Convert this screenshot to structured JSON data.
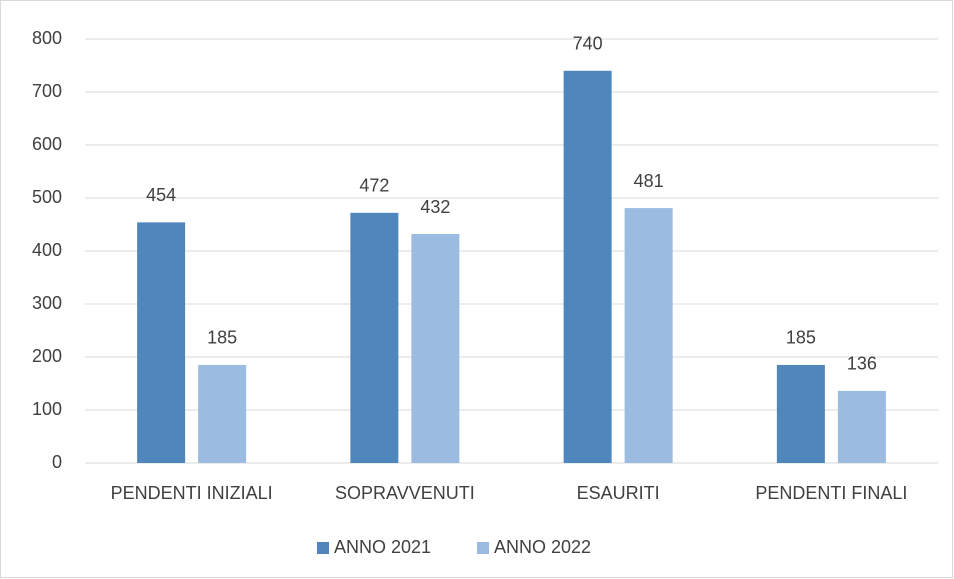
{
  "chart_data": {
    "type": "bar",
    "categories": [
      "PENDENTI INIZIALI",
      "SOPRAVVENUTI",
      "ESAURITI",
      "PENDENTI FINALI"
    ],
    "series": [
      {
        "name": "ANNO 2021",
        "color": "#4f87bd",
        "values": [
          454,
          472,
          740,
          185
        ]
      },
      {
        "name": "ANNO 2022",
        "color": "#9bbbe0",
        "values": [
          185,
          432,
          481,
          136
        ]
      }
    ],
    "ylim": [
      0,
      800
    ],
    "yticks": [
      0,
      100,
      200,
      300,
      400,
      500,
      600,
      700,
      800
    ],
    "grid": true,
    "legend": "bottom"
  }
}
